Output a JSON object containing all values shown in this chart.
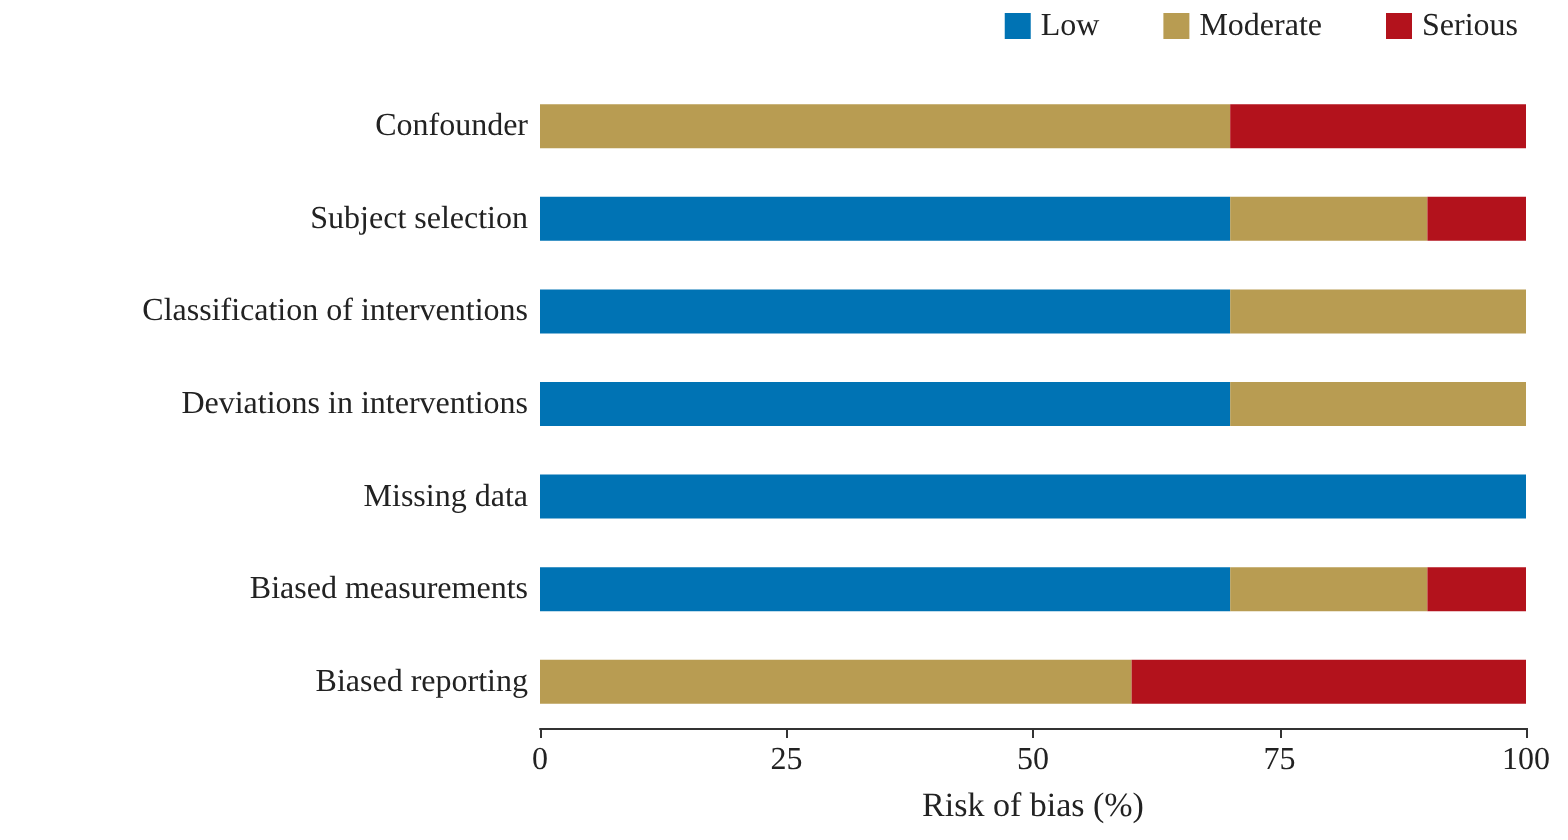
{
  "chart_data": {
    "type": "bar",
    "orientation": "horizontal",
    "stacked": true,
    "xlabel": "Risk of bias (%)",
    "categories": [
      "Confounder",
      "Subject selection",
      "Classification of interventions",
      "Deviations in interventions",
      "Missing data",
      "Biased measurements",
      "Biased reporting"
    ],
    "series": [
      {
        "name": "Low",
        "color": "#0073b4",
        "values": [
          0,
          70,
          70,
          70,
          100,
          70,
          0
        ]
      },
      {
        "name": "Moderate",
        "color": "#b89c52",
        "values": [
          70,
          20,
          30,
          30,
          0,
          20,
          60
        ]
      },
      {
        "name": "Serious",
        "color": "#b3121c",
        "values": [
          30,
          10,
          0,
          0,
          0,
          10,
          40
        ]
      }
    ],
    "xlim": [
      0,
      100
    ],
    "xticks": [
      0,
      25,
      50,
      75,
      100
    ],
    "grid": false,
    "legend": "top right"
  }
}
